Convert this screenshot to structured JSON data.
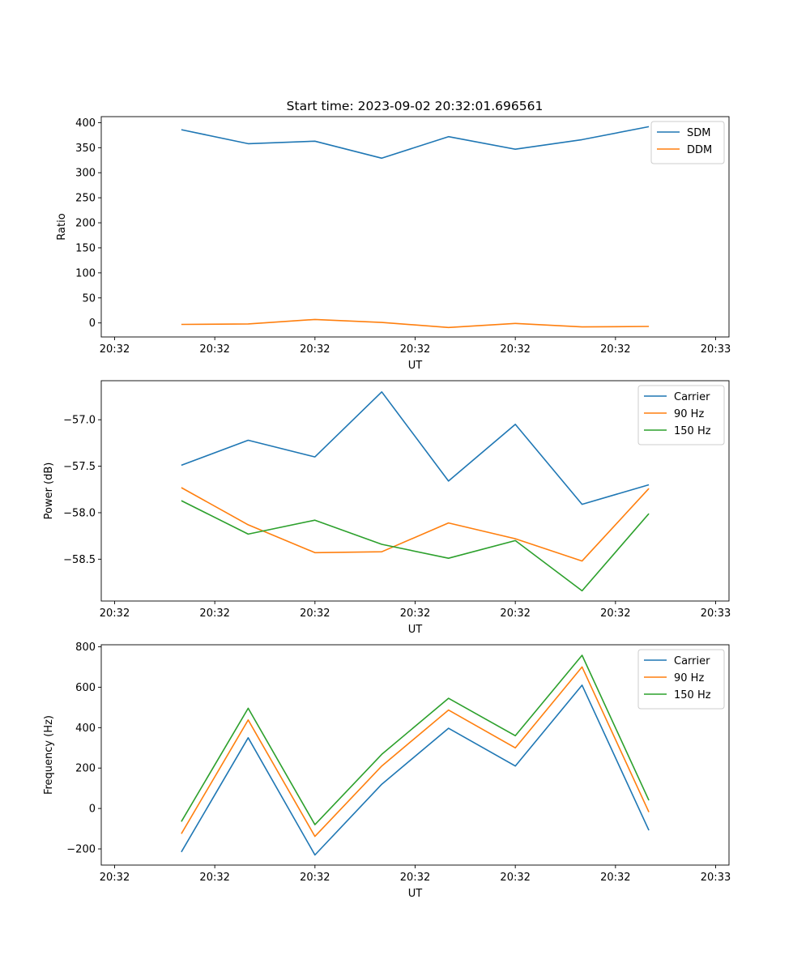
{
  "figure": {
    "title": "Start time: 2023-09-02 20:32:01.696561"
  },
  "chart_data": [
    {
      "type": "line",
      "title": "Start time: 2023-09-02 20:32:01.696561",
      "xlabel": "UT",
      "ylabel": "Ratio",
      "x_index": [
        1,
        2,
        3,
        4,
        5,
        6,
        7,
        8
      ],
      "xlim": [
        -0.2,
        9.2
      ],
      "x_ticks": [
        0,
        1.5,
        3,
        4.5,
        6,
        7.5,
        9
      ],
      "x_tick_labels": [
        "20:32",
        "20:32",
        "20:32",
        "20:32",
        "20:32",
        "20:32",
        "20:33"
      ],
      "ylim": [
        -28,
        412
      ],
      "y_ticks": [
        0,
        50,
        100,
        150,
        200,
        250,
        300,
        350,
        400
      ],
      "y_tick_labels": [
        "0",
        "50",
        "100",
        "150",
        "200",
        "250",
        "300",
        "350",
        "400"
      ],
      "legend": "top-right",
      "grid": false,
      "series": [
        {
          "name": "SDM",
          "color": "#1f77b4",
          "values": [
            386,
            358,
            363,
            329,
            372,
            347,
            366,
            392
          ]
        },
        {
          "name": "DDM",
          "color": "#ff7f0e",
          "values": [
            -3,
            -2,
            7,
            1,
            -9,
            -1,
            -8,
            -7
          ]
        }
      ]
    },
    {
      "type": "line",
      "title": "",
      "xlabel": "UT",
      "ylabel": "Power (dB)",
      "x_index": [
        1,
        2,
        3,
        4,
        5,
        6,
        7,
        8
      ],
      "xlim": [
        -0.2,
        9.2
      ],
      "x_ticks": [
        0,
        1.5,
        3,
        4.5,
        6,
        7.5,
        9
      ],
      "x_tick_labels": [
        "20:32",
        "20:32",
        "20:32",
        "20:32",
        "20:32",
        "20:32",
        "20:33"
      ],
      "ylim": [
        -58.95,
        -56.58
      ],
      "y_ticks": [
        -57.0,
        -57.5,
        -58.0,
        -58.5
      ],
      "y_tick_labels": [
        "−57.0",
        "−57.5",
        "−58.0",
        "−58.5"
      ],
      "legend": "top-right",
      "grid": false,
      "series": [
        {
          "name": "Carrier",
          "color": "#1f77b4",
          "values": [
            -57.49,
            -57.22,
            -57.4,
            -56.7,
            -57.66,
            -57.05,
            -57.91,
            -57.7
          ]
        },
        {
          "name": "90 Hz",
          "color": "#ff7f0e",
          "values": [
            -57.73,
            -58.13,
            -58.43,
            -58.42,
            -58.11,
            -58.28,
            -58.52,
            -57.74
          ]
        },
        {
          "name": "150 Hz",
          "color": "#2ca02c",
          "values": [
            -57.87,
            -58.23,
            -58.08,
            -58.34,
            -58.49,
            -58.3,
            -58.84,
            -58.01
          ]
        }
      ]
    },
    {
      "type": "line",
      "title": "",
      "xlabel": "UT",
      "ylabel": "Frequency (Hz)",
      "x_index": [
        1,
        2,
        3,
        4,
        5,
        6,
        7,
        8
      ],
      "xlim": [
        -0.2,
        9.2
      ],
      "x_ticks": [
        0,
        1.5,
        3,
        4.5,
        6,
        7.5,
        9
      ],
      "x_tick_labels": [
        "20:32",
        "20:32",
        "20:32",
        "20:32",
        "20:32",
        "20:32",
        "20:33"
      ],
      "ylim": [
        -280,
        810
      ],
      "y_ticks": [
        -200,
        0,
        200,
        400,
        600,
        800
      ],
      "y_tick_labels": [
        "−200",
        "0",
        "200",
        "400",
        "600",
        "800"
      ],
      "legend": "top-right",
      "grid": false,
      "series": [
        {
          "name": "Carrier",
          "color": "#1f77b4",
          "values": [
            -215,
            350,
            -230,
            120,
            397,
            210,
            610,
            -108
          ]
        },
        {
          "name": "90 Hz",
          "color": "#ff7f0e",
          "values": [
            -125,
            438,
            -138,
            210,
            487,
            300,
            700,
            -18
          ]
        },
        {
          "name": "150 Hz",
          "color": "#2ca02c",
          "values": [
            -65,
            496,
            -80,
            268,
            545,
            360,
            758,
            40
          ]
        }
      ]
    }
  ]
}
